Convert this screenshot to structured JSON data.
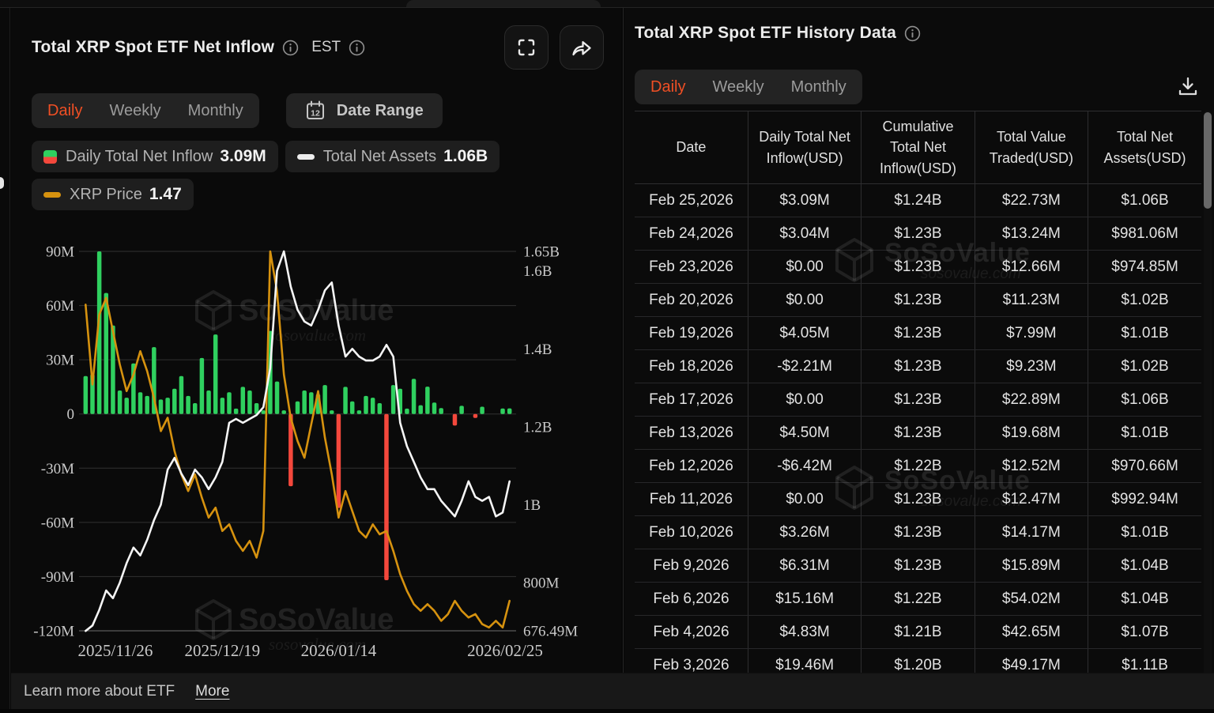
{
  "left_panel": {
    "title": "Total XRP Spot ETF Net Inflow",
    "timezone_label": "EST",
    "tabs": {
      "items": [
        "Daily",
        "Weekly",
        "Monthly"
      ],
      "active": "Daily"
    },
    "date_range_label": "Date Range",
    "legend": [
      {
        "icon": "inflow-split-square",
        "label": "Daily Total Net Inflow",
        "value": "3.09M"
      },
      {
        "icon": "white-dash",
        "label": "Total Net Assets",
        "value": "1.06B"
      },
      {
        "icon": "gold-dash",
        "label": "XRP Price",
        "value": "1.47"
      }
    ],
    "watermark": {
      "brand": "SoSoValue",
      "domain": "sosovalue.com"
    }
  },
  "chart_data": {
    "type": "bar",
    "note": "combo chart: daily net inflow bars (left axis, USD millions), total net assets line (right axis, USD billions), XRP price line (hidden axis, USD)",
    "x_tick_labels": [
      {
        "index": 3,
        "label": "2025/11/26"
      },
      {
        "index": 20,
        "label": "2025/12/19"
      },
      {
        "index": 37,
        "label": "2026/01/14"
      },
      {
        "index": 62,
        "label": "2026/02/25"
      }
    ],
    "left_axis": {
      "ticks": [
        "90M",
        "60M",
        "30M",
        "0",
        "-30M",
        "-60M",
        "-90M",
        "-120M"
      ],
      "tick_values_M": [
        90,
        60,
        30,
        0,
        -30,
        -60,
        -90,
        -120
      ],
      "range_M": [
        -120,
        90
      ]
    },
    "right_axis": {
      "ticks": [
        "1.65B",
        "1.6B",
        "1.4B",
        "1.2B",
        "1B",
        "800M",
        "676.49M"
      ],
      "tick_values_B": [
        1.65,
        1.6,
        1.4,
        1.2,
        1.0,
        0.8,
        0.67649
      ],
      "range_B": [
        0.67649,
        1.65
      ]
    },
    "series": [
      {
        "name": "Daily Total Net Inflow",
        "type": "bar",
        "unit": "M USD",
        "axis": "left",
        "values": [
          21,
          22,
          90,
          67,
          49,
          13,
          9,
          28,
          12,
          10,
          37,
          8,
          9,
          14,
          21,
          10,
          6,
          31,
          13,
          44,
          9,
          12,
          3,
          15,
          13,
          6,
          2,
          46,
          18,
          2,
          -40,
          7,
          13,
          12,
          11,
          16,
          2,
          -52,
          15,
          7,
          2,
          10,
          9,
          6,
          -92,
          16,
          14,
          3,
          19.46,
          4.83,
          15.16,
          6.31,
          3.26,
          0,
          -6.42,
          4.5,
          0,
          -2.21,
          4.05,
          0,
          0,
          3.04,
          3.09
        ]
      },
      {
        "name": "Total Net Assets",
        "type": "line",
        "unit": "B USD",
        "axis": "right",
        "values": [
          0.676,
          0.69,
          0.73,
          0.78,
          0.76,
          0.8,
          0.85,
          0.89,
          0.87,
          0.91,
          0.96,
          1.0,
          1.09,
          1.12,
          1.08,
          1.05,
          1.09,
          1.07,
          1.04,
          1.07,
          1.11,
          1.21,
          1.22,
          1.21,
          1.22,
          1.23,
          1.25,
          1.35,
          1.6,
          1.65,
          1.56,
          1.5,
          1.47,
          1.46,
          1.5,
          1.55,
          1.57,
          1.46,
          1.38,
          1.4,
          1.38,
          1.37,
          1.37,
          1.38,
          1.41,
          1.38,
          1.21,
          1.15,
          1.11,
          1.07,
          1.04,
          1.04,
          1.01,
          0.99,
          0.97,
          1.01,
          1.06,
          1.02,
          1.01,
          1.02,
          0.97,
          0.98,
          1.06
        ]
      },
      {
        "name": "XRP Price",
        "type": "line",
        "unit": "USD",
        "axis": "hidden",
        "est_range": [
          1.38,
          2.52
        ],
        "values": [
          2.36,
          2.12,
          2.33,
          2.38,
          2.28,
          2.18,
          2.1,
          2.15,
          2.22,
          2.16,
          2.08,
          1.98,
          2.02,
          1.92,
          1.85,
          1.8,
          1.85,
          1.78,
          1.72,
          1.75,
          1.68,
          1.7,
          1.65,
          1.62,
          1.65,
          1.6,
          1.68,
          2.52,
          2.4,
          2.15,
          2.02,
          1.95,
          1.9,
          2.0,
          2.1,
          1.96,
          1.85,
          1.72,
          1.8,
          1.74,
          1.68,
          1.66,
          1.7,
          1.67,
          1.68,
          1.62,
          1.55,
          1.5,
          1.46,
          1.44,
          1.46,
          1.44,
          1.41,
          1.43,
          1.47,
          1.44,
          1.42,
          1.43,
          1.4,
          1.39,
          1.41,
          1.39,
          1.47
        ]
      }
    ],
    "colors": {
      "bar_positive": "#2fd05f",
      "bar_negative": "#f4483c",
      "assets_line": "#f5f5f5",
      "price_line": "#d6920f"
    }
  },
  "right_panel": {
    "title": "Total XRP Spot ETF History Data",
    "tabs": {
      "items": [
        "Daily",
        "Weekly",
        "Monthly"
      ],
      "active": "Daily"
    },
    "table": {
      "headers": [
        "Date",
        "Daily Total Net Inflow(USD)",
        "Cumulative Total Net Inflow(USD)",
        "Total Value Traded(USD)",
        "Total Net Assets(USD)"
      ],
      "rows": [
        {
          "date": "Feb 25,2026",
          "inflow": "$3.09M",
          "inflow_state": "pos",
          "cumulative": "$1.24B",
          "traded": "$22.73M",
          "assets": "$1.06B"
        },
        {
          "date": "Feb 24,2026",
          "inflow": "$3.04M",
          "inflow_state": "pos",
          "cumulative": "$1.23B",
          "traded": "$13.24M",
          "assets": "$981.06M"
        },
        {
          "date": "Feb 23,2026",
          "inflow": "$0.00",
          "inflow_state": "zero",
          "cumulative": "$1.23B",
          "traded": "$12.66M",
          "assets": "$974.85M"
        },
        {
          "date": "Feb 20,2026",
          "inflow": "$0.00",
          "inflow_state": "zero",
          "cumulative": "$1.23B",
          "traded": "$11.23M",
          "assets": "$1.02B"
        },
        {
          "date": "Feb 19,2026",
          "inflow": "$4.05M",
          "inflow_state": "pos",
          "cumulative": "$1.23B",
          "traded": "$7.99M",
          "assets": "$1.01B"
        },
        {
          "date": "Feb 18,2026",
          "inflow": "-$2.21M",
          "inflow_state": "neg",
          "cumulative": "$1.23B",
          "traded": "$9.23M",
          "assets": "$1.02B"
        },
        {
          "date": "Feb 17,2026",
          "inflow": "$0.00",
          "inflow_state": "zero",
          "cumulative": "$1.23B",
          "traded": "$22.89M",
          "assets": "$1.06B"
        },
        {
          "date": "Feb 13,2026",
          "inflow": "$4.50M",
          "inflow_state": "pos",
          "cumulative": "$1.23B",
          "traded": "$19.68M",
          "assets": "$1.01B"
        },
        {
          "date": "Feb 12,2026",
          "inflow": "-$6.42M",
          "inflow_state": "neg",
          "cumulative": "$1.22B",
          "traded": "$12.52M",
          "assets": "$970.66M"
        },
        {
          "date": "Feb 11,2026",
          "inflow": "$0.00",
          "inflow_state": "zero",
          "cumulative": "$1.23B",
          "traded": "$12.47M",
          "assets": "$992.94M"
        },
        {
          "date": "Feb 10,2026",
          "inflow": "$3.26M",
          "inflow_state": "pos",
          "cumulative": "$1.23B",
          "traded": "$14.17M",
          "assets": "$1.01B"
        },
        {
          "date": "Feb 9,2026",
          "inflow": "$6.31M",
          "inflow_state": "pos",
          "cumulative": "$1.23B",
          "traded": "$15.89M",
          "assets": "$1.04B"
        },
        {
          "date": "Feb 6,2026",
          "inflow": "$15.16M",
          "inflow_state": "pos",
          "cumulative": "$1.22B",
          "traded": "$54.02M",
          "assets": "$1.04B"
        },
        {
          "date": "Feb 4,2026",
          "inflow": "$4.83M",
          "inflow_state": "pos",
          "cumulative": "$1.21B",
          "traded": "$42.65M",
          "assets": "$1.07B"
        },
        {
          "date": "Feb 3,2026",
          "inflow": "$19.46M",
          "inflow_state": "pos",
          "cumulative": "$1.20B",
          "traded": "$49.17M",
          "assets": "$1.11B"
        }
      ]
    }
  },
  "footer": {
    "text": "Learn more about ETF",
    "link": "More"
  },
  "colors": {
    "accent": "#f04f24",
    "green": "#2fca64",
    "red": "#f5473d",
    "gold": "#d6920f",
    "assets_white": "#f5f5f5"
  }
}
